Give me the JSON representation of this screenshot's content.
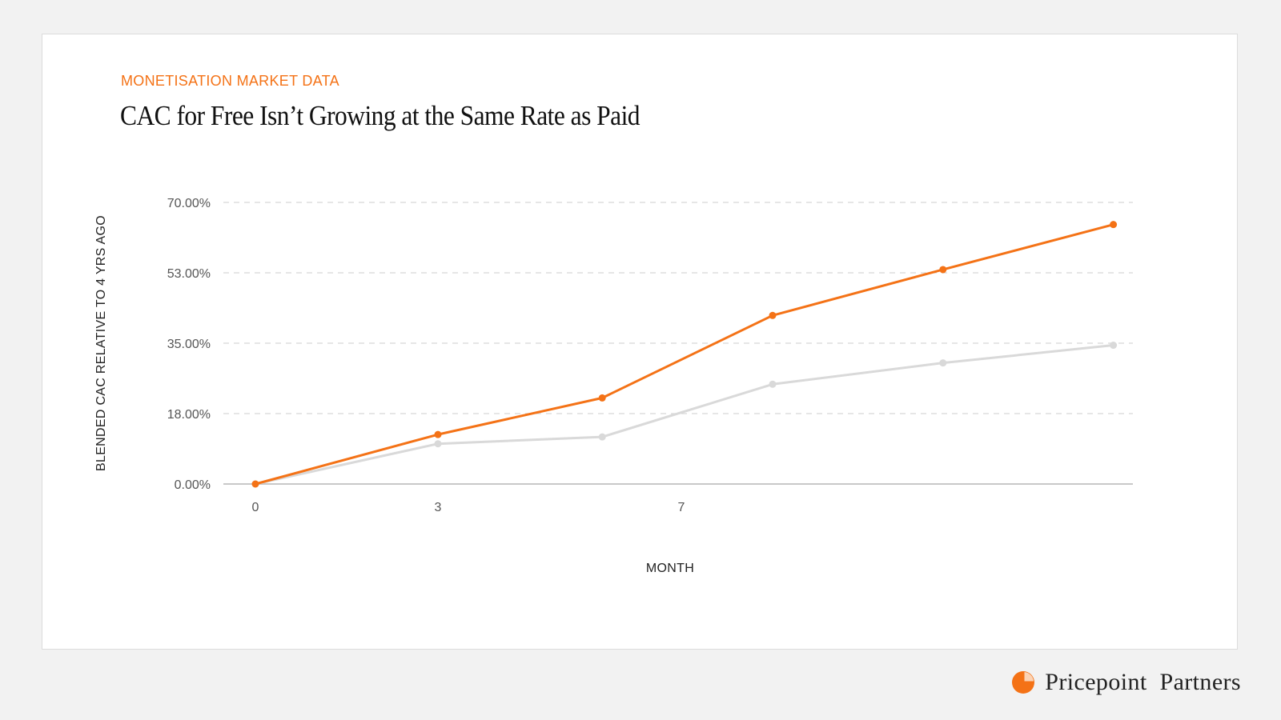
{
  "header": {
    "eyebrow": "MONETISATION MARKET DATA",
    "title": "CAC for Free Isn’t Growing at the Same Rate as Paid"
  },
  "brand": {
    "name": "Pricepoint  Partners",
    "logo_icon": "pie-chart-icon",
    "logo_color": "#f47216"
  },
  "colors": {
    "accent": "#f47216",
    "paid_series": "#f47216",
    "free_series": "#d9d9d9",
    "grid": "#d8d8d8",
    "axis": "#c8c8c8"
  },
  "chart_data": {
    "type": "line",
    "title": "CAC for Free Isn’t Growing at the Same Rate as Paid",
    "xlabel": "MONTH",
    "ylabel": "BLENDED CAC RELATIVE TO 4 YRS AGO",
    "x_tick_labels": [
      "0",
      "3",
      "7"
    ],
    "y_tick_labels": [
      "0.00%",
      "18.00%",
      "35.00%",
      "53.00%",
      "70.00%"
    ],
    "ylim": [
      0,
      70
    ],
    "grid": true,
    "legend": "none",
    "series": [
      {
        "x": [
          0,
          3,
          5.7,
          8.5,
          11.3,
          14.1
        ],
        "values": [
          0,
          12.3,
          21.4,
          41.9,
          53.3,
          64.5
        ]
      },
      {
        "x": [
          0,
          3,
          5.7,
          8.5,
          11.3,
          14.1
        ],
        "values": [
          0,
          10.0,
          11.7,
          24.8,
          30.1,
          34.5
        ]
      }
    ]
  }
}
